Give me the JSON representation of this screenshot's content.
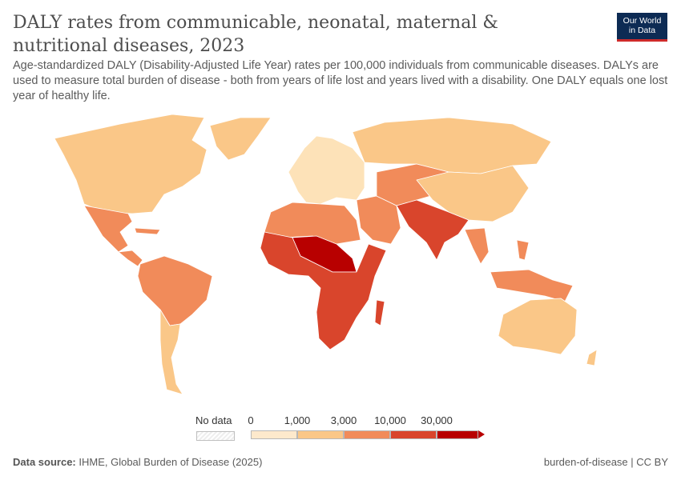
{
  "header": {
    "title": "DALY rates from communicable, neonatal, maternal & nutritional diseases, 2023",
    "subtitle": "Age-standardized DALY (Disability-Adjusted Life Year) rates per 100,000 individuals from communicable diseases. DALYs are used to measure total burden of disease - both from years of life lost and years lived with a disability. One DALY equals one lost year of healthy life."
  },
  "logo": {
    "line1": "Our World",
    "line2": "in Data"
  },
  "legend": {
    "no_data_label": "No data",
    "ticks": [
      "0",
      "1,000",
      "3,000",
      "10,000",
      "30,000"
    ],
    "colors": [
      "#fde9cc",
      "#fac788",
      "#f18b5a",
      "#d9452c",
      "#b80000"
    ]
  },
  "footer": {
    "source_label": "Data source:",
    "source_text": "IHME, Global Burden of Disease (2025)",
    "right": "burden-of-disease | CC BY"
  },
  "map_regions": [
    {
      "name": "North America",
      "color": "#fac788"
    },
    {
      "name": "Greenland",
      "color": "#fac788"
    },
    {
      "name": "Mexico",
      "color": "#f18b5a"
    },
    {
      "name": "Central America",
      "color": "#f18b5a"
    },
    {
      "name": "South America",
      "color": "#f18b5a"
    },
    {
      "name": "Southern Cone",
      "color": "#fac788"
    },
    {
      "name": "Europe",
      "color": "#fde2b8"
    },
    {
      "name": "Russia",
      "color": "#fac788"
    },
    {
      "name": "North Africa",
      "color": "#f18b5a"
    },
    {
      "name": "Sahel",
      "color": "#b80000"
    },
    {
      "name": "Sub-Saharan Africa",
      "color": "#d9452c"
    },
    {
      "name": "Middle East",
      "color": "#f18b5a"
    },
    {
      "name": "Central Asia",
      "color": "#f18b5a"
    },
    {
      "name": "South Asia",
      "color": "#d9452c"
    },
    {
      "name": "China",
      "color": "#fac788"
    },
    {
      "name": "Southeast Asia",
      "color": "#f18b5a"
    },
    {
      "name": "Australia",
      "color": "#fac788"
    }
  ]
}
